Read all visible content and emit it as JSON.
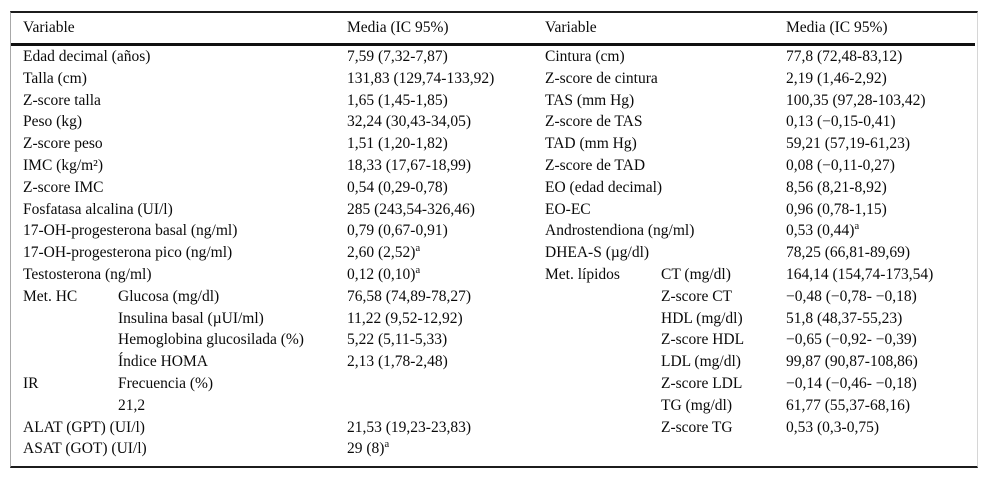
{
  "table": {
    "header": {
      "left_variable": "Variable",
      "left_media": "Media (IC 95%)",
      "right_variable": "Variable",
      "right_media": "Media (IC 95%)"
    },
    "footnote_marker": "a",
    "rows": [
      {
        "left_group": "",
        "left_indent": "",
        "left_label": "Edad decimal (años)",
        "left_media": "7,59 (7,32-7,87)",
        "left_sup": "",
        "right_group": "",
        "right_indent": "",
        "right_label": "Cintura (cm)",
        "right_media": "77,8 (72,48-83,12)",
        "right_sup": ""
      },
      {
        "left_group": "",
        "left_indent": "",
        "left_label": "Talla (cm)",
        "left_media": "131,83 (129,74-133,92)",
        "left_sup": "",
        "right_group": "",
        "right_indent": "",
        "right_label": "Z-score de cintura",
        "right_media": "2,19 (1,46-2,92)",
        "right_sup": ""
      },
      {
        "left_group": "",
        "left_indent": "",
        "left_label": "Z-score talla",
        "left_media": "1,65 (1,45-1,85)",
        "left_sup": "",
        "right_group": "",
        "right_indent": "",
        "right_label": "TAS (mm Hg)",
        "right_media": "100,35 (97,28-103,42)",
        "right_sup": ""
      },
      {
        "left_group": "",
        "left_indent": "",
        "left_label": "Peso (kg)",
        "left_media": "32,24 (30,43-34,05)",
        "left_sup": "",
        "right_group": "",
        "right_indent": "",
        "right_label": "Z-score de TAS",
        "right_media": "0,13 (−0,15-0,41)",
        "right_sup": ""
      },
      {
        "left_group": "",
        "left_indent": "",
        "left_label": "Z-score peso",
        "left_media": "1,51 (1,20-1,82)",
        "left_sup": "",
        "right_group": "",
        "right_indent": "",
        "right_label": "TAD (mm Hg)",
        "right_media": "59,21 (57,19-61,23)",
        "right_sup": ""
      },
      {
        "left_group": "",
        "left_indent": "",
        "left_label": "IMC (kg/m²)",
        "left_media": "18,33 (17,67-18,99)",
        "left_sup": "",
        "right_group": "",
        "right_indent": "",
        "right_label": "Z-score de TAD",
        "right_media": "0,08 (−0,11-0,27)",
        "right_sup": ""
      },
      {
        "left_group": "",
        "left_indent": "",
        "left_label": "Z-score IMC",
        "left_media": "0,54 (0,29-0,78)",
        "left_sup": "",
        "right_group": "",
        "right_indent": "",
        "right_label": "EO (edad decimal)",
        "right_media": "8,56 (8,21-8,92)",
        "right_sup": ""
      },
      {
        "left_group": "",
        "left_indent": "",
        "left_label": "Fosfatasa alcalina (UI/l)",
        "left_media": "285 (243,54-326,46)",
        "left_sup": "",
        "right_group": "",
        "right_indent": "",
        "right_label": "EO-EC",
        "right_media": "0,96 (0,78-1,15)",
        "right_sup": ""
      },
      {
        "left_group": "",
        "left_indent": "",
        "left_label": "17-OH-progesterona basal (ng/ml)",
        "left_media": "0,79 (0,67-0,91)",
        "left_sup": "",
        "right_group": "",
        "right_indent": "",
        "right_label": "Androstendiona (ng/ml)",
        "right_media": "0,53 (0,44)",
        "right_sup": "a"
      },
      {
        "left_group": "",
        "left_indent": "",
        "left_label": "17-OH-progesterona pico (ng/ml)",
        "left_media": "2,60 (2,52)",
        "left_sup": "a",
        "right_group": "",
        "right_indent": "",
        "right_label": "DHEA-S (µg/dl)",
        "right_media": "78,25 (66,81-89,69)",
        "right_sup": ""
      },
      {
        "left_group": "",
        "left_indent": "",
        "left_label": "Testosterona (ng/ml)",
        "left_media": "0,12 (0,10)",
        "left_sup": "a",
        "right_group": "Met. lípidos",
        "right_indent": "",
        "right_label": "CT (mg/dl)",
        "right_media": "164,14 (154,74-173,54)",
        "right_sup": ""
      },
      {
        "left_group": "Met. HC",
        "left_indent": "",
        "left_label": "Glucosa (mg/dl)",
        "left_media": "76,58 (74,89-78,27)",
        "left_sup": "",
        "right_group": "",
        "right_indent": "1",
        "right_label": "Z-score CT",
        "right_media": "−0,48 (−0,78- −0,18)",
        "right_sup": ""
      },
      {
        "left_group": "",
        "left_indent": "1",
        "left_label": "Insulina basal (µUI/ml)",
        "left_media": "11,22 (9,52-12,92)",
        "left_sup": "",
        "right_group": "",
        "right_indent": "1",
        "right_label": "HDL (mg/dl)",
        "right_media": "51,8 (48,37-55,23)",
        "right_sup": ""
      },
      {
        "left_group": "",
        "left_indent": "1",
        "left_label": "Hemoglobina glucosilada (%)",
        "left_media": "5,22 (5,11-5,33)",
        "left_sup": "",
        "right_group": "",
        "right_indent": "1",
        "right_label": "Z-score HDL",
        "right_media": "−0,65 (−0,92- −0,39)",
        "right_sup": ""
      },
      {
        "left_group": "",
        "left_indent": "1",
        "left_label": "Índice HOMA",
        "left_media": "2,13 (1,78-2,48)",
        "left_sup": "",
        "right_group": "",
        "right_indent": "1",
        "right_label": "LDL (mg/dl)",
        "right_media": "99,87 (90,87-108,86)",
        "right_sup": ""
      },
      {
        "left_group": "IR",
        "left_indent": "",
        "left_label": "Frecuencia (%)",
        "left_media": "",
        "left_sup": "",
        "right_group": "",
        "right_indent": "1",
        "right_label": "Z-score LDL",
        "right_media": "−0,14 (−0,46- −0,18)",
        "right_sup": ""
      },
      {
        "left_group": "",
        "left_indent": "1",
        "left_label": "21,2",
        "left_media": "",
        "left_sup": "",
        "right_group": "",
        "right_indent": "1",
        "right_label": "TG (mg/dl)",
        "right_media": "61,77 (55,37-68,16)",
        "right_sup": ""
      },
      {
        "left_group": "",
        "left_indent": "",
        "left_label": "ALAT (GPT) (UI/l)",
        "left_media": "21,53 (19,23-23,83)",
        "left_sup": "",
        "right_group": "",
        "right_indent": "1",
        "right_label": "Z-score TG",
        "right_media": "0,53 (0,3-0,75)",
        "right_sup": ""
      },
      {
        "left_group": "",
        "left_indent": "",
        "left_label": "ASAT (GOT) (UI/l)",
        "left_media": "29 (8)",
        "left_sup": "a",
        "right_group": "",
        "right_indent": "",
        "right_label": "",
        "right_media": "",
        "right_sup": ""
      }
    ]
  }
}
